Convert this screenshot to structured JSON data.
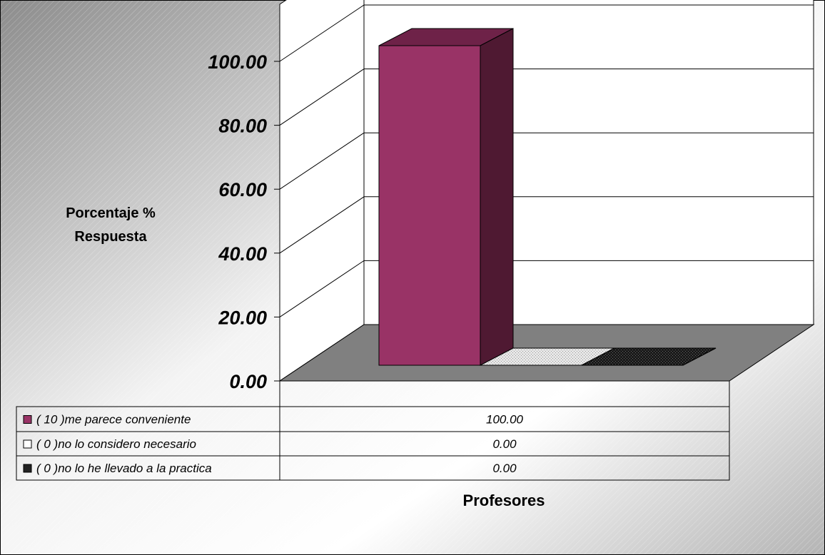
{
  "chart_data": {
    "type": "bar",
    "categories": [
      "Profesores"
    ],
    "series": [
      {
        "name": "( 10 )me parece conveniente",
        "values": [
          100.0
        ],
        "color": "#993366"
      },
      {
        "name": "( 0 )no lo considero necesario",
        "values": [
          0.0
        ],
        "color": "#ffffff"
      },
      {
        "name": "( 0 )no lo he llevado a la practica",
        "values": [
          0.0
        ],
        "color": "#222222"
      }
    ],
    "value_labels": [
      "100.00",
      "0.00",
      "0.00"
    ],
    "yticks": [
      "0.00",
      "20.00",
      "40.00",
      "60.00",
      "80.00",
      "100.00"
    ],
    "ylim": [
      0,
      100
    ],
    "ylabel_line1": "Porcentaje %",
    "ylabel_line2": "Respuesta",
    "xlabel": "Profesores",
    "grid": true,
    "legend": "data table below plot"
  }
}
